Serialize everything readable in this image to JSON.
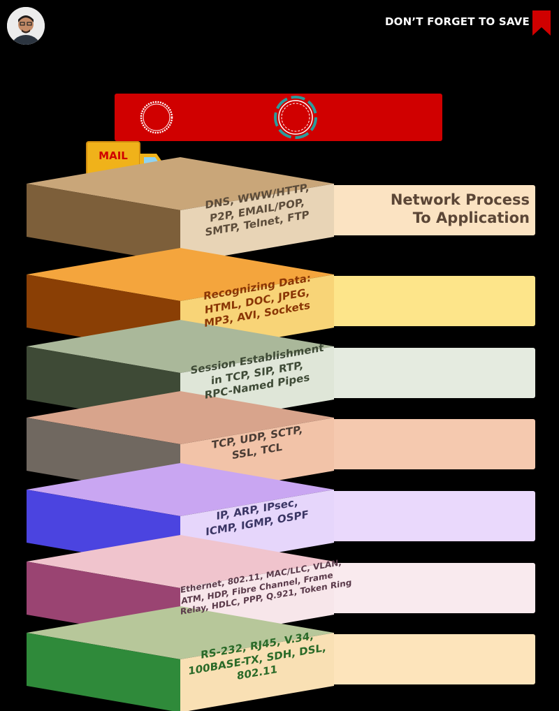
{
  "header": {
    "save_label": "DON’T FORGET TO SAVE",
    "bookmark_color": "#d00000"
  },
  "banner": {
    "color": "#d00000"
  },
  "truck": {
    "label": "MAIL",
    "color": "#f0b21a"
  },
  "heading": {
    "line1": "Network Process",
    "line2": "To Application"
  },
  "layers": [
    {
      "lines": [
        "DNS, WWW/HTTP,",
        "P2P, EMAIL/POP,",
        "SMTP, Telnet, FTP"
      ],
      "top": "#c9a679",
      "side": "#7d5f3a",
      "front": "#e8d4b6",
      "card": "#fbe3c2",
      "text_color": "#5c4c3a"
    },
    {
      "lines": [
        "Recognizing Data:",
        "HTML, DOC, JPEG,",
        "MP3, AVI, Sockets"
      ],
      "top": "#f4a53d",
      "side": "#8a3f05",
      "front": "#f8d477",
      "card": "#fde58a",
      "text_color": "#8a3605"
    },
    {
      "lines": [
        "Session Establishment",
        "in TCP, SIP, RTP,",
        "RPC-Named Pipes"
      ],
      "top": "#aab89a",
      "side": "#3e4a36",
      "front": "#dfe6d8",
      "card": "#e5ebe0",
      "text_color": "#3e4a36"
    },
    {
      "lines": [
        "TCP, UDP, SCTP,",
        "SSL, TCL"
      ],
      "top": "#d8a48c",
      "side": "#706860",
      "front": "#f2c3a8",
      "card": "#f5c9af",
      "text_color": "#4a3c34"
    },
    {
      "lines": [
        "IP, ARP, IPsec,",
        "ICMP, IGMP, OSPF"
      ],
      "top": "#c9a6f2",
      "side": "#4b44e0",
      "front": "#e6d6fb",
      "card": "#ead9fc",
      "text_color": "#3a3564"
    },
    {
      "lines": [
        "Ethernet, 802.11, MAC/LLC, VLAN,",
        "ATM, HDP, Fibre Channel, Frame",
        "Relay, HDLC, PPP, Q.921, Token Ring"
      ],
      "top": "#f0c4cd",
      "side": "#9a4472",
      "front": "#f7e6ea",
      "card": "#f9eaee",
      "text_color": "#5a3a4a"
    },
    {
      "lines": [
        "RS-232, RJ45, V.34,",
        "100BASE-TX, SDH, DSL,",
        "802.11"
      ],
      "top": "#b7c79a",
      "side": "#2f8a3a",
      "front": "#f9e0b4",
      "card": "#fde4bb",
      "text_color": "#2a6a28"
    }
  ]
}
